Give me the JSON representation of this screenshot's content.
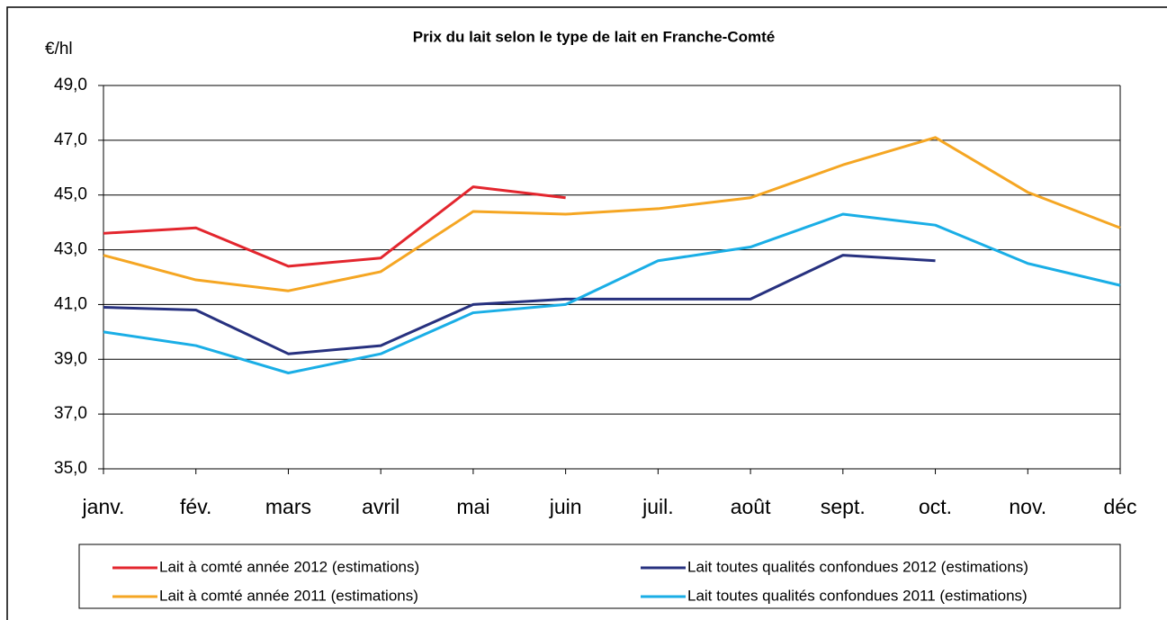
{
  "chart_data": {
    "type": "line",
    "title": "Prix du lait selon le type de lait en Franche-Comté",
    "y_label": "€/hl",
    "categories": [
      "janv.",
      "fév.",
      "mars",
      "avril",
      "mai",
      "juin",
      "juil.",
      "août",
      "sept.",
      "oct.",
      "nov.",
      "déc"
    ],
    "series": [
      {
        "name": "Lait à comté année 2012 (estimations)",
        "color": "#e3262e",
        "values": [
          43.6,
          43.8,
          42.4,
          42.7,
          45.3,
          44.9,
          null,
          null,
          null,
          null,
          null,
          null
        ]
      },
      {
        "name": "Lait toutes qualités confondues 2012 (estimations)",
        "color": "#27317f",
        "values": [
          40.9,
          40.8,
          39.2,
          39.5,
          41.0,
          41.2,
          41.2,
          41.2,
          42.8,
          42.6,
          null,
          null
        ]
      },
      {
        "name": "Lait à comté année 2011 (estimations)",
        "color": "#f5a623",
        "values": [
          42.8,
          41.9,
          41.5,
          42.2,
          44.4,
          44.3,
          44.5,
          44.9,
          46.1,
          47.1,
          45.1,
          43.8
        ]
      },
      {
        "name": "Lait toutes qualités confondues 2011 (estimations)",
        "color": "#1aaee6",
        "values": [
          40.0,
          39.5,
          38.5,
          39.2,
          40.7,
          41.0,
          42.6,
          43.1,
          44.3,
          43.9,
          42.5,
          41.7
        ]
      }
    ],
    "ylim": [
      35,
      49
    ],
    "yticks": [
      {
        "value": 35,
        "label": "35,0"
      },
      {
        "value": 37,
        "label": "37,0"
      },
      {
        "value": 39,
        "label": "39,0"
      },
      {
        "value": 41,
        "label": "41,0"
      },
      {
        "value": 43,
        "label": "43,0"
      },
      {
        "value": 45,
        "label": "45,0"
      },
      {
        "value": 47,
        "label": "47,0"
      },
      {
        "value": 49,
        "label": "49,0"
      }
    ],
    "grid": true
  }
}
